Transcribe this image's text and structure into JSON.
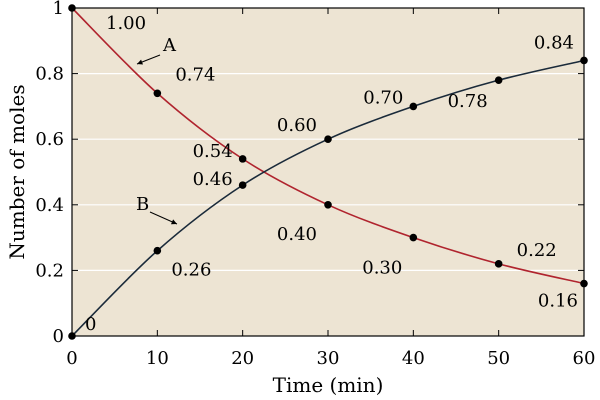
{
  "chart_data": {
    "type": "line",
    "title": "",
    "xlabel": "Time (min)",
    "ylabel": "Number of moles",
    "xlim": [
      0,
      60
    ],
    "ylim": [
      0,
      1
    ],
    "xticks": [
      0,
      10,
      20,
      30,
      40,
      50,
      60
    ],
    "yticks": [
      0,
      0.2,
      0.4,
      0.6,
      0.8,
      1
    ],
    "ytick_labels": [
      "0",
      "0.2",
      "0.4",
      "0.6",
      "0.8",
      "1"
    ],
    "grid": "horizontal",
    "legend": "none",
    "background_color": "#ede4d3",
    "x": [
      0,
      10,
      20,
      30,
      40,
      50,
      60
    ],
    "series": [
      {
        "name": "A",
        "color": "#b0242e",
        "values": [
          1.0,
          0.74,
          0.54,
          0.4,
          0.3,
          0.22,
          0.16
        ],
        "labels": [
          "1.00",
          "0.74",
          "0.54",
          "0.40",
          "0.30",
          "0.22",
          "0.16"
        ]
      },
      {
        "name": "B",
        "color": "#1a2a3a",
        "values": [
          0,
          0.26,
          0.46,
          0.6,
          0.7,
          0.78,
          0.84
        ],
        "labels": [
          "0",
          "0.26",
          "0.46",
          "0.60",
          "0.70",
          "0.78",
          "0.84"
        ]
      }
    ]
  }
}
